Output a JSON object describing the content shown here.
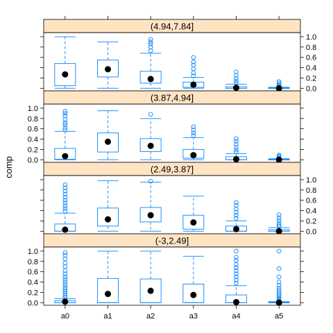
{
  "chart_data": {
    "type": "box",
    "ylabel": "comp",
    "categories": [
      "a0",
      "a1",
      "a2",
      "a3",
      "a4",
      "a5"
    ],
    "ylim": [
      -0.05,
      1.08
    ],
    "yticks": [
      0.0,
      0.2,
      0.4,
      0.6,
      0.8,
      1.0
    ],
    "ytick_labels": [
      "0.0",
      "0.2",
      "0.4",
      "0.6",
      "0.8",
      "1.0"
    ],
    "colors": {
      "box": "#1e90ff",
      "strip": "#ffe4c4",
      "median": "#000000"
    },
    "panels": [
      {
        "label": "(4.94,7.84]",
        "boxes": [
          {
            "category": "a0",
            "whisker_low": 0.0,
            "q1": 0.05,
            "median": 0.27,
            "q3": 0.48,
            "whisker_high": 1.0,
            "outliers": []
          },
          {
            "category": "a1",
            "whisker_low": 0.0,
            "q1": 0.22,
            "median": 0.37,
            "q3": 0.55,
            "whisker_high": 0.9,
            "outliers": []
          },
          {
            "category": "a2",
            "whisker_low": 0.0,
            "q1": 0.1,
            "median": 0.18,
            "q3": 0.33,
            "whisker_high": 0.68,
            "outliers": [
              0.73,
              0.8,
              0.86,
              0.9,
              0.95
            ]
          },
          {
            "category": "a3",
            "whisker_low": 0.0,
            "q1": 0.02,
            "median": 0.07,
            "q3": 0.12,
            "whisker_high": 0.21,
            "outliers": [
              0.24,
              0.3,
              0.38,
              0.45,
              0.51,
              0.6
            ]
          },
          {
            "category": "a4",
            "whisker_low": 0.0,
            "q1": 0.0,
            "median": 0.01,
            "q3": 0.03,
            "whisker_high": 0.08,
            "outliers": [
              0.1,
              0.14,
              0.19,
              0.25,
              0.32
            ]
          },
          {
            "category": "a5",
            "whisker_low": 0.0,
            "q1": 0.0,
            "median": 0.0,
            "q3": 0.01,
            "whisker_high": 0.02,
            "outliers": [
              0.03,
              0.05,
              0.07,
              0.1,
              0.13
            ]
          }
        ]
      },
      {
        "label": "(3.87,4.94]",
        "boxes": [
          {
            "category": "a0",
            "whisker_low": 0.0,
            "q1": 0.01,
            "median": 0.07,
            "q3": 0.22,
            "whisker_high": 0.55,
            "outliers": [
              0.58,
              0.62,
              0.68,
              0.72,
              0.78,
              0.85,
              0.9,
              0.94
            ]
          },
          {
            "category": "a1",
            "whisker_low": 0.0,
            "q1": 0.15,
            "median": 0.35,
            "q3": 0.52,
            "whisker_high": 0.95,
            "outliers": []
          },
          {
            "category": "a2",
            "whisker_low": 0.0,
            "q1": 0.16,
            "median": 0.27,
            "q3": 0.41,
            "whisker_high": 0.8,
            "outliers": [
              0.88
            ]
          },
          {
            "category": "a3",
            "whisker_low": 0.0,
            "q1": 0.03,
            "median": 0.09,
            "q3": 0.2,
            "whisker_high": 0.43,
            "outliers": [
              0.47,
              0.52,
              0.58,
              0.64
            ]
          },
          {
            "category": "a4",
            "whisker_low": 0.0,
            "q1": 0.0,
            "median": 0.01,
            "q3": 0.06,
            "whisker_high": 0.12,
            "outliers": [
              0.15,
              0.19,
              0.24,
              0.3,
              0.36,
              0.41
            ]
          },
          {
            "category": "a5",
            "whisker_low": 0.0,
            "q1": 0.0,
            "median": 0.0,
            "q3": 0.01,
            "whisker_high": 0.02,
            "outliers": [
              0.03,
              0.05,
              0.07,
              0.09
            ]
          }
        ]
      },
      {
        "label": "(2.49,3.87]",
        "boxes": [
          {
            "category": "a0",
            "whisker_low": 0.0,
            "q1": 0.0,
            "median": 0.03,
            "q3": 0.14,
            "whisker_high": 0.35,
            "outliers": [
              0.39,
              0.44,
              0.49,
              0.55,
              0.6,
              0.66,
              0.72,
              0.78,
              0.84,
              0.9
            ]
          },
          {
            "category": "a1",
            "whisker_low": 0.0,
            "q1": 0.1,
            "median": 0.23,
            "q3": 0.45,
            "whisker_high": 0.98,
            "outliers": []
          },
          {
            "category": "a2",
            "whisker_low": 0.0,
            "q1": 0.18,
            "median": 0.31,
            "q3": 0.46,
            "whisker_high": 0.95,
            "outliers": [
              0.97
            ]
          },
          {
            "category": "a3",
            "whisker_low": 0.0,
            "q1": 0.04,
            "median": 0.17,
            "q3": 0.31,
            "whisker_high": 0.68,
            "outliers": []
          },
          {
            "category": "a4",
            "whisker_low": 0.0,
            "q1": 0.0,
            "median": 0.04,
            "q3": 0.1,
            "whisker_high": 0.2,
            "outliers": [
              0.25,
              0.31,
              0.37,
              0.43,
              0.5,
              0.56
            ]
          },
          {
            "category": "a5",
            "whisker_low": 0.0,
            "q1": 0.0,
            "median": 0.0,
            "q3": 0.03,
            "whisker_high": 0.07,
            "outliers": [
              0.09,
              0.12,
              0.16,
              0.21,
              0.26,
              0.32
            ]
          }
        ]
      },
      {
        "label": "(-3,2.49]",
        "boxes": [
          {
            "category": "a0",
            "whisker_low": 0.0,
            "q1": 0.0,
            "median": 0.02,
            "q3": 0.04,
            "whisker_high": 0.08,
            "outliers": [
              0.1,
              0.14,
              0.18,
              0.22,
              0.26,
              0.3,
              0.35,
              0.4,
              0.45,
              0.5,
              0.56,
              0.62,
              0.7,
              0.77,
              0.85,
              0.92,
              0.97
            ]
          },
          {
            "category": "a1",
            "whisker_low": 0.0,
            "q1": 0.0,
            "median": 0.17,
            "q3": 0.47,
            "whisker_high": 1.0,
            "outliers": []
          },
          {
            "category": "a2",
            "whisker_low": 0.0,
            "q1": 0.0,
            "median": 0.23,
            "q3": 0.46,
            "whisker_high": 1.0,
            "outliers": []
          },
          {
            "category": "a3",
            "whisker_low": 0.0,
            "q1": 0.0,
            "median": 0.15,
            "q3": 0.36,
            "whisker_high": 0.9,
            "outliers": []
          },
          {
            "category": "a4",
            "whisker_low": 0.0,
            "q1": 0.0,
            "median": 0.01,
            "q3": 0.15,
            "whisker_high": 0.33,
            "outliers": [
              0.38,
              0.44,
              0.5,
              0.56,
              0.62,
              0.68,
              0.74,
              0.82,
              0.88,
              1.0
            ]
          },
          {
            "category": "a5",
            "whisker_low": 0.0,
            "q1": 0.0,
            "median": 0.0,
            "q3": 0.01,
            "whisker_high": 0.02,
            "outliers": [
              0.04,
              0.07,
              0.1,
              0.13,
              0.16,
              0.2,
              0.24,
              0.28,
              0.34,
              0.4,
              0.5,
              0.66,
              1.0
            ]
          }
        ]
      }
    ]
  }
}
